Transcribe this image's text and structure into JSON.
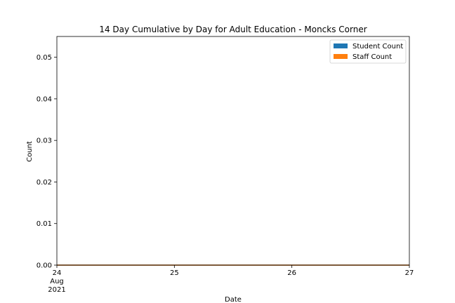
{
  "chart_data": {
    "type": "area",
    "title": "14 Day Cumulative by Day for Adult Education - Moncks Corner",
    "xlabel": "Date",
    "ylabel": "Count",
    "x": [
      24,
      25,
      26,
      27
    ],
    "x_tick_labels": [
      "24",
      "25",
      "26",
      "27"
    ],
    "x_first_tick_sublabels": [
      "Aug",
      "2021"
    ],
    "xlim": [
      24,
      27
    ],
    "ylim": [
      0,
      0.055
    ],
    "y_ticks": [
      0.0,
      0.01,
      0.02,
      0.03,
      0.04,
      0.05
    ],
    "y_tick_labels": [
      "0.00",
      "0.01",
      "0.02",
      "0.03",
      "0.04",
      "0.05"
    ],
    "grid": false,
    "legend_position": "top-right",
    "series": [
      {
        "name": "Student Count",
        "color": "#1f77b4",
        "values": [
          0,
          0,
          0,
          0
        ]
      },
      {
        "name": "Staff Count",
        "color": "#ff7f0e",
        "values": [
          0,
          0,
          0,
          0
        ]
      }
    ]
  }
}
